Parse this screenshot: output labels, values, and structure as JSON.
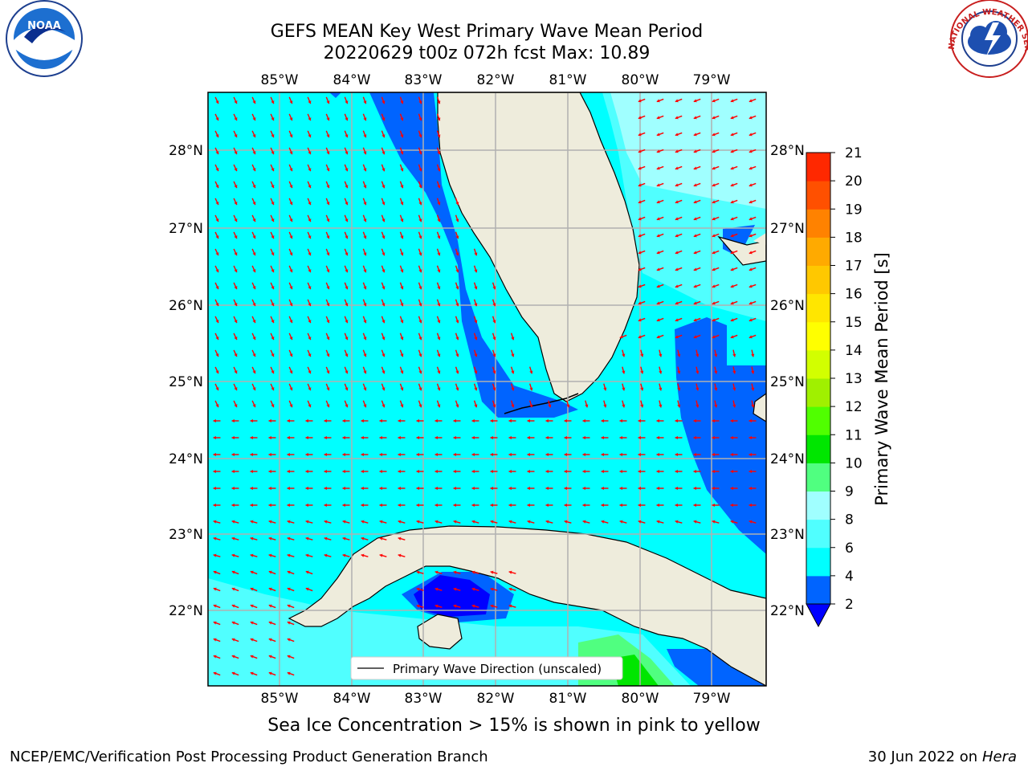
{
  "title": {
    "line1": "GEFS MEAN Key West Primary Wave Mean Period",
    "line2": "20220629 t00z 072h fcst   Max: 10.89"
  },
  "map": {
    "lon_labels": [
      "85°W",
      "84°W",
      "83°W",
      "82°W",
      "81°W",
      "80°W",
      "79°W"
    ],
    "lat_labels": [
      "28°N",
      "27°N",
      "26°N",
      "25°N",
      "24°N",
      "23°N",
      "22°N"
    ],
    "legend_label": "Primary Wave Direction (unscaled)",
    "colors": {
      "land": "#eeecdc",
      "arrow": "#ff0000",
      "grid": "#b0b0b0"
    }
  },
  "colorbar": {
    "label": "Primary Wave Mean Period [s]",
    "ticks": [
      "2",
      "4",
      "6",
      "8",
      "9",
      "10",
      "11",
      "12",
      "13",
      "14",
      "15",
      "16",
      "17",
      "18",
      "19",
      "20",
      "21"
    ],
    "colors": [
      "#0064ff",
      "#00ffff",
      "#50ffff",
      "#a0ffff",
      "#50ff80",
      "#00e600",
      "#50ff00",
      "#a0f000",
      "#d2ff00",
      "#ffff00",
      "#ffe600",
      "#ffc800",
      "#ffaa00",
      "#ff8200",
      "#ff5000",
      "#ff2800",
      "#ff0000"
    ],
    "under_color": "#0000ff"
  },
  "caption": "Sea Ice Concentration > 15% is shown in pink to yellow",
  "credits": {
    "left": "NCEP/EMC/Verification Post Processing Product Generation Branch",
    "right_date": "30 Jun 2022 on",
    "right_host": "Hera"
  },
  "logos": {
    "noaa_text": "NOAA",
    "nws_text": "NATIONAL WEATHER SERVICE"
  }
}
